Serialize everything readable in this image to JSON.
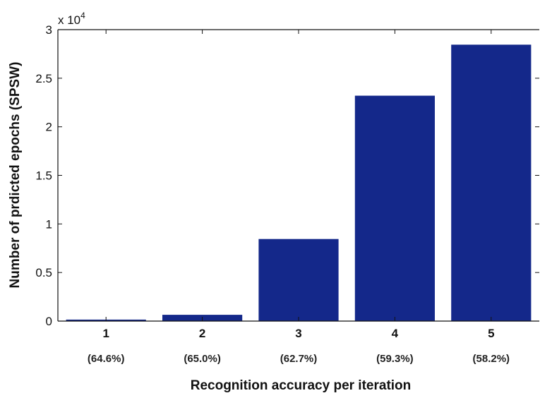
{
  "chart_data": {
    "type": "bar",
    "categories": [
      "1",
      "2",
      "3",
      "4",
      "5"
    ],
    "category_sublabels": [
      "(64.6%)",
      "(65.0%)",
      "(62.7%)",
      "(59.3%)",
      "(58.2%)"
    ],
    "values": [
      150,
      650,
      8450,
      23200,
      28450
    ],
    "title": "",
    "xlabel": "Recognition accuracy per iteration",
    "ylabel": "Number of prdicted epochs (SPSW)",
    "ylim": [
      0,
      30000
    ],
    "yticks": [
      0,
      5000,
      10000,
      15000,
      20000,
      25000,
      30000
    ],
    "ytick_labels": [
      "0",
      "0.5",
      "1",
      "1.5",
      "2",
      "2.5",
      "3"
    ],
    "y_exponent_base": "x 10",
    "y_exponent_power": "4",
    "bar_color": "#14288a",
    "grid": false,
    "legend": "none"
  }
}
